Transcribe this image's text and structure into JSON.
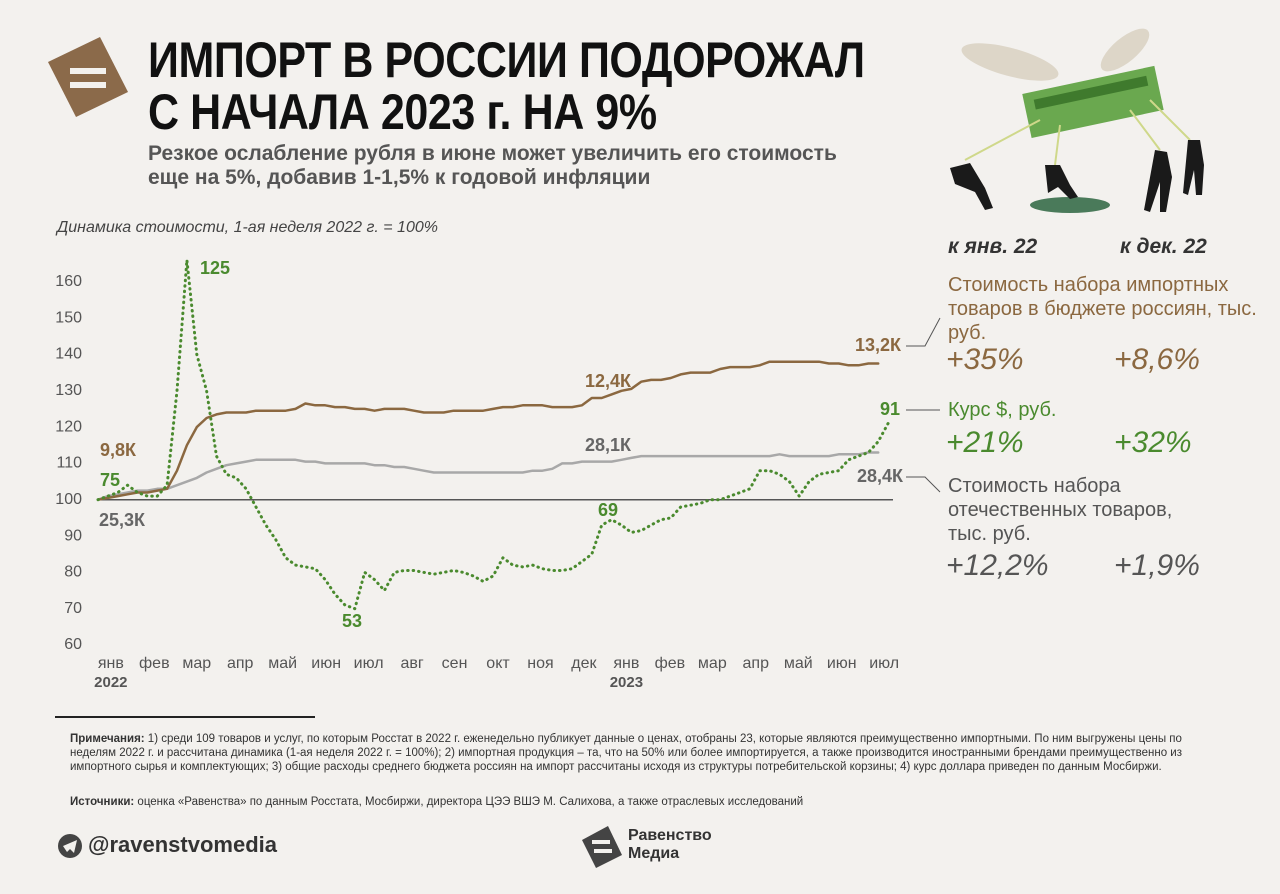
{
  "header": {
    "title": [
      "ИМПОРТ В РОССИИ ПОДОРОЖАЛ",
      "С НАЧАЛА 2023 г. НА 9%"
    ],
    "subtitle": [
      "Резкое ослабление рубля в июне может увеличить его стоимость",
      "еще на 5%, добавив 1-1,5% к годовой инфляции"
    ]
  },
  "chart_data": {
    "type": "line",
    "axis_caption": "Динамика стоимости, 1-ая неделя 2022 г. = 100%",
    "x": [
      0,
      1,
      2,
      3,
      4,
      5,
      6,
      7,
      8,
      9,
      10,
      11,
      12,
      13,
      14,
      15,
      16,
      17,
      18,
      19,
      20,
      21,
      22,
      23,
      24,
      25,
      26,
      27,
      28,
      29,
      30,
      31,
      32,
      33,
      34,
      35,
      36,
      37,
      38,
      39,
      40,
      41,
      42,
      43,
      44,
      45,
      46,
      47,
      48,
      49,
      50,
      51,
      52,
      53,
      54,
      55,
      56,
      57,
      58,
      59,
      60,
      61,
      62,
      63,
      64,
      65,
      66,
      67,
      68,
      69,
      70,
      71,
      72,
      73,
      74,
      75,
      76,
      77,
      78,
      79,
      80
    ],
    "xlim": [
      0,
      81
    ],
    "xticks": [
      {
        "value": 1.3,
        "label": "янв"
      },
      {
        "value": 5.7,
        "label": "фев"
      },
      {
        "value": 10,
        "label": "мар"
      },
      {
        "value": 14.4,
        "label": "апр"
      },
      {
        "value": 18.7,
        "label": "май"
      },
      {
        "value": 23.1,
        "label": "июн"
      },
      {
        "value": 27.4,
        "label": "июл"
      },
      {
        "value": 31.8,
        "label": "авг"
      },
      {
        "value": 36.1,
        "label": "сен"
      },
      {
        "value": 40.5,
        "label": "окт"
      },
      {
        "value": 44.8,
        "label": "ноя"
      },
      {
        "value": 49.2,
        "label": "дек"
      },
      {
        "value": 53.5,
        "label": "янв"
      },
      {
        "value": 57.9,
        "label": "фев"
      },
      {
        "value": 62.2,
        "label": "мар"
      },
      {
        "value": 66.6,
        "label": "апр"
      },
      {
        "value": 70.9,
        "label": "май"
      },
      {
        "value": 75.3,
        "label": "июн"
      },
      {
        "value": 79.6,
        "label": "июл"
      }
    ],
    "years": [
      "2022",
      "2023"
    ],
    "ylim": [
      60,
      166
    ],
    "yticks": [
      60,
      70,
      80,
      90,
      100,
      110,
      120,
      130,
      140,
      150,
      160
    ],
    "baseline": 100,
    "series": [
      {
        "name": "Курс $, руб.",
        "color": "#4a8a2e",
        "style": "dotted",
        "labels": [
          "75",
          "125",
          "53",
          "69",
          "91"
        ],
        "values": [
          100,
          101,
          102,
          104,
          102,
          101,
          101,
          104,
          130,
          166,
          140,
          130,
          112,
          107,
          106,
          103,
          98,
          93,
          89,
          84,
          82,
          81.5,
          81,
          78,
          74,
          71,
          70,
          80,
          78,
          75,
          80,
          80.5,
          80.5,
          80,
          79.5,
          80,
          80.5,
          80,
          79,
          77.5,
          79,
          84,
          82,
          81.5,
          82,
          81,
          80.5,
          80.5,
          81,
          83,
          85,
          93,
          94.5,
          93,
          91,
          91.5,
          93,
          94.5,
          95,
          98,
          98.5,
          99,
          100,
          100,
          101,
          102,
          103,
          108,
          108,
          107,
          105,
          101,
          105,
          107,
          107.5,
          108,
          111,
          112,
          113,
          116,
          121
        ]
      },
      {
        "name": "Стоимость набора импортных товаров в бюджете россиян, тыс. руб.",
        "color": "#8b6840",
        "style": "solid",
        "labels": [
          "9,8К",
          "12,4К",
          "13,2К"
        ],
        "values": [
          100,
          100.5,
          101,
          101.5,
          102,
          102,
          102.5,
          103,
          108,
          115,
          120,
          122.5,
          123.5,
          124,
          124,
          124,
          124.5,
          124.5,
          124.5,
          124.5,
          125,
          126.5,
          126,
          126,
          125.5,
          125.5,
          125,
          125,
          124.5,
          125,
          125,
          125,
          124.5,
          124,
          124,
          124,
          124.5,
          124.5,
          124.5,
          124.5,
          125,
          125.5,
          125.5,
          126,
          126,
          126,
          125.5,
          125.5,
          125.5,
          126,
          128,
          128,
          129,
          130,
          130.5,
          132.5,
          133,
          133,
          133.5,
          134.5,
          135,
          135,
          135,
          136,
          136.5,
          136.5,
          136.5,
          137,
          138,
          138,
          138,
          138,
          138,
          138,
          137.5,
          137.5,
          137,
          137,
          137.5,
          137.5,
          null
        ]
      },
      {
        "name": "Стоимость набора отечественных товаров, тыс. руб.",
        "color": "#a8a8a8",
        "style": "solid",
        "labels": [
          "25,3К",
          "28,1К",
          "28,4К"
        ],
        "values": [
          100,
          101,
          101.5,
          102,
          102.5,
          102.5,
          103,
          103,
          104,
          105,
          106,
          107.5,
          108.5,
          109.5,
          110,
          110.5,
          111,
          111,
          111,
          111,
          111,
          110.5,
          110.5,
          110,
          110,
          110,
          110,
          110,
          109.5,
          109.5,
          109,
          109,
          108.5,
          108,
          107.5,
          107.5,
          107.5,
          107.5,
          107.5,
          107.5,
          107.5,
          107.5,
          107.5,
          107.5,
          108,
          108,
          108.5,
          110,
          110,
          110.5,
          110.5,
          110.5,
          110.5,
          111,
          111.5,
          112,
          112,
          112,
          112,
          112,
          112,
          112,
          112,
          112,
          112,
          112,
          112,
          112,
          112,
          112.5,
          112,
          112,
          112,
          112,
          112,
          112.5,
          112.5,
          112.5,
          113,
          113,
          null
        ]
      }
    ]
  },
  "summary": {
    "columns": [
      "к янв. 22",
      "к дек. 22"
    ],
    "rows": [
      {
        "label": "Стоимость набора импортных товаров в бюджете россиян, тыс. руб.",
        "values": [
          "+35%",
          "+8,6%"
        ]
      },
      {
        "label": "Курс $, руб.",
        "values": [
          "+21%",
          "+32%"
        ]
      },
      {
        "label": "Стоимость набора отечественных товаров, тыс. руб.",
        "values": [
          "+12,2%",
          "+1,9%"
        ]
      }
    ]
  },
  "notes": {
    "label": "Примечания:",
    "text": " 1) среди 109 товаров и услуг, по которым Росстат в 2022 г. еженедельно публикует данные о ценах, отобраны 23, которые являются преимущественно импортными. По ним выгружены цены по неделям 2022 г. и рассчитана динамика (1-ая неделя 2022 г. = 100%); 2) импортная продукция – та, что на 50% или более импортируется, а также производится иностранными брендами преимущественно из импортного сырья и комплектующих; 3) общие расходы среднего бюджета россиян на импорт рассчитаны исходя из структуры потребительской корзины; 4) курс доллара приведен по данным Мосбиржи."
  },
  "sources": {
    "label": "Источники:",
    "text": " оценка «Равенства» по данным Росстата, Мосбиржи, директора ЦЭЭ ВШЭ М. Салихова, а также отраслевых исследований"
  },
  "footer": {
    "handle": "@ravenstvomedia",
    "brand": [
      "Равенство",
      "Медиа"
    ]
  }
}
